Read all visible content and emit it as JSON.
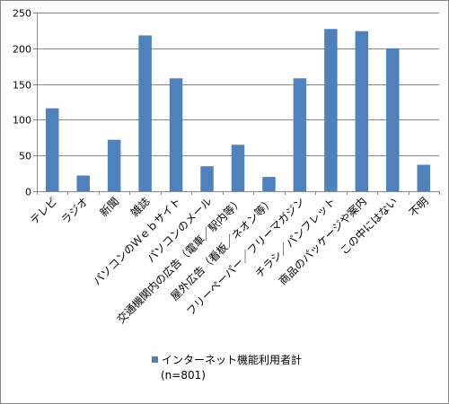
{
  "chart_data": {
    "type": "bar",
    "categories": [
      "テレビ",
      "ラジオ",
      "新聞",
      "雑誌",
      "パソコンのＷｅｂサイト",
      "パソコンのメール",
      "交通機関内の広告（電車／駅内等）",
      "屋外広告（看板／ネオン等）",
      "フリーペーパー／フリーマガジン",
      "チラシ／パンフレット",
      "商品のパッケージや案内",
      "この中にはない",
      "不明"
    ],
    "series": [
      {
        "name": "インターネット機能利用者計",
        "values": [
          116,
          22,
          72,
          218,
          158,
          35,
          65,
          20,
          158,
          227,
          224,
          200,
          37
        ]
      }
    ],
    "yticks": [
      "0",
      "50",
      "100",
      "150",
      "200",
      "250"
    ],
    "ylim": [
      0,
      250
    ],
    "grid": true,
    "legend": {
      "position": "bottom",
      "label": "インターネット機能利用者計",
      "note": "(n=801)"
    },
    "colors": {
      "bar": "#4f81bd",
      "grid": "#868686",
      "axis": "#868686"
    }
  }
}
